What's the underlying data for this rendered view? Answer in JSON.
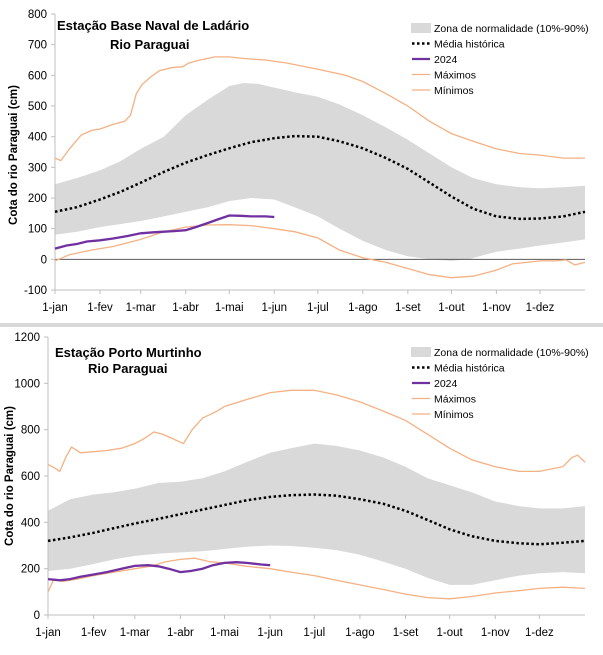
{
  "chart_data": [
    {
      "type": "line",
      "title": "Estação Base Naval de Ladário",
      "subtitle": "Rio Paraguai",
      "ylabel": "Cota do rio Paraguai (cm)",
      "xlabel": "",
      "ylim": [
        -100,
        800
      ],
      "yticks": [
        -100,
        0,
        100,
        200,
        300,
        400,
        500,
        600,
        700,
        800
      ],
      "xlim_day": [
        0,
        365
      ],
      "xticks": [
        {
          "label": "1-jan",
          "day": 0
        },
        {
          "label": "1-fev",
          "day": 31
        },
        {
          "label": "1-mar",
          "day": 59
        },
        {
          "label": "1-abr",
          "day": 90
        },
        {
          "label": "1-mai",
          "day": 120
        },
        {
          "label": "1-jun",
          "day": 151
        },
        {
          "label": "1-jul",
          "day": 181
        },
        {
          "label": "1-ago",
          "day": 212
        },
        {
          "label": "1-set",
          "day": 243
        },
        {
          "label": "1-out",
          "day": 273
        },
        {
          "label": "1-nov",
          "day": 304
        },
        {
          "label": "1-dez",
          "day": 334
        }
      ],
      "legend": [
        "Zona de normalidade (10%-90%)",
        "Média histórica",
        "2024",
        "Máximos",
        "Mínimos"
      ],
      "colors": {
        "band": "#d9d9d9",
        "mean": "#000000",
        "current": "#7030a0",
        "max": "#f4b183",
        "min": "#f4b183"
      },
      "band_upper": [
        [
          0,
          245
        ],
        [
          15,
          265
        ],
        [
          31,
          290
        ],
        [
          45,
          320
        ],
        [
          59,
          360
        ],
        [
          75,
          400
        ],
        [
          90,
          470
        ],
        [
          105,
          520
        ],
        [
          120,
          565
        ],
        [
          130,
          575
        ],
        [
          140,
          572
        ],
        [
          151,
          560
        ],
        [
          165,
          545
        ],
        [
          181,
          530
        ],
        [
          196,
          505
        ],
        [
          212,
          470
        ],
        [
          228,
          430
        ],
        [
          243,
          390
        ],
        [
          258,
          345
        ],
        [
          273,
          300
        ],
        [
          288,
          265
        ],
        [
          304,
          245
        ],
        [
          320,
          235
        ],
        [
          334,
          232
        ],
        [
          350,
          235
        ],
        [
          365,
          240
        ]
      ],
      "band_lower": [
        [
          0,
          80
        ],
        [
          15,
          90
        ],
        [
          31,
          105
        ],
        [
          45,
          115
        ],
        [
          59,
          125
        ],
        [
          75,
          140
        ],
        [
          90,
          155
        ],
        [
          105,
          170
        ],
        [
          120,
          190
        ],
        [
          135,
          200
        ],
        [
          151,
          195
        ],
        [
          165,
          170
        ],
        [
          181,
          140
        ],
        [
          196,
          100
        ],
        [
          212,
          60
        ],
        [
          228,
          30
        ],
        [
          243,
          10
        ],
        [
          258,
          0
        ],
        [
          273,
          -5
        ],
        [
          285,
          0
        ],
        [
          296,
          15
        ],
        [
          304,
          25
        ],
        [
          320,
          35
        ],
        [
          334,
          45
        ],
        [
          350,
          55
        ],
        [
          365,
          65
        ]
      ],
      "mean": [
        [
          0,
          155
        ],
        [
          15,
          170
        ],
        [
          31,
          195
        ],
        [
          45,
          220
        ],
        [
          59,
          250
        ],
        [
          75,
          285
        ],
        [
          90,
          315
        ],
        [
          105,
          340
        ],
        [
          120,
          362
        ],
        [
          135,
          382
        ],
        [
          151,
          395
        ],
        [
          165,
          402
        ],
        [
          181,
          400
        ],
        [
          196,
          385
        ],
        [
          212,
          362
        ],
        [
          228,
          330
        ],
        [
          243,
          295
        ],
        [
          258,
          250
        ],
        [
          273,
          205
        ],
        [
          288,
          165
        ],
        [
          304,
          140
        ],
        [
          320,
          132
        ],
        [
          334,
          133
        ],
        [
          350,
          140
        ],
        [
          365,
          155
        ]
      ],
      "current": [
        [
          0,
          35
        ],
        [
          8,
          45
        ],
        [
          15,
          50
        ],
        [
          22,
          58
        ],
        [
          31,
          62
        ],
        [
          40,
          68
        ],
        [
          50,
          76
        ],
        [
          59,
          85
        ],
        [
          68,
          88
        ],
        [
          75,
          90
        ],
        [
          82,
          92
        ],
        [
          90,
          95
        ],
        [
          97,
          105
        ],
        [
          105,
          118
        ],
        [
          112,
          130
        ],
        [
          120,
          143
        ],
        [
          128,
          142
        ],
        [
          135,
          140
        ],
        [
          145,
          140
        ],
        [
          151,
          138
        ]
      ],
      "max": [
        [
          0,
          330
        ],
        [
          4,
          322
        ],
        [
          10,
          360
        ],
        [
          18,
          405
        ],
        [
          25,
          420
        ],
        [
          31,
          425
        ],
        [
          40,
          440
        ],
        [
          48,
          450
        ],
        [
          52,
          470
        ],
        [
          56,
          540
        ],
        [
          60,
          570
        ],
        [
          66,
          595
        ],
        [
          72,
          615
        ],
        [
          80,
          625
        ],
        [
          88,
          628
        ],
        [
          92,
          640
        ],
        [
          100,
          650
        ],
        [
          110,
          660
        ],
        [
          120,
          660
        ],
        [
          130,
          655
        ],
        [
          145,
          650
        ],
        [
          160,
          640
        ],
        [
          181,
          620
        ],
        [
          200,
          600
        ],
        [
          212,
          580
        ],
        [
          228,
          540
        ],
        [
          243,
          500
        ],
        [
          258,
          450
        ],
        [
          273,
          410
        ],
        [
          288,
          385
        ],
        [
          304,
          360
        ],
        [
          320,
          345
        ],
        [
          334,
          340
        ],
        [
          350,
          330
        ],
        [
          365,
          330
        ]
      ],
      "min": [
        [
          0,
          -5
        ],
        [
          10,
          15
        ],
        [
          25,
          30
        ],
        [
          40,
          42
        ],
        [
          59,
          65
        ],
        [
          75,
          90
        ],
        [
          90,
          105
        ],
        [
          105,
          112
        ],
        [
          120,
          113
        ],
        [
          135,
          110
        ],
        [
          151,
          100
        ],
        [
          165,
          90
        ],
        [
          181,
          70
        ],
        [
          196,
          30
        ],
        [
          212,
          5
        ],
        [
          228,
          -10
        ],
        [
          243,
          -30
        ],
        [
          258,
          -50
        ],
        [
          273,
          -60
        ],
        [
          288,
          -55
        ],
        [
          304,
          -35
        ],
        [
          315,
          -15
        ],
        [
          325,
          -10
        ],
        [
          334,
          -5
        ],
        [
          345,
          -5
        ],
        [
          352,
          -2
        ],
        [
          358,
          -18
        ],
        [
          365,
          -10
        ]
      ]
    },
    {
      "type": "line",
      "title": "Estação Porto Murtinho",
      "subtitle": "Rio Paraguai",
      "ylabel": "Cota do rio Paraguai (cm)",
      "xlabel": "",
      "ylim": [
        0,
        1200
      ],
      "yticks": [
        0,
        200,
        400,
        600,
        800,
        1000,
        1200
      ],
      "xlim_day": [
        0,
        365
      ],
      "xticks": [
        {
          "label": "1-jan",
          "day": 0
        },
        {
          "label": "1-fev",
          "day": 31
        },
        {
          "label": "1-mar",
          "day": 59
        },
        {
          "label": "1-abr",
          "day": 90
        },
        {
          "label": "1-mai",
          "day": 120
        },
        {
          "label": "1-jun",
          "day": 151
        },
        {
          "label": "1-jul",
          "day": 181
        },
        {
          "label": "1-ago",
          "day": 212
        },
        {
          "label": "1-set",
          "day": 243
        },
        {
          "label": "1-out",
          "day": 273
        },
        {
          "label": "1-nov",
          "day": 304
        },
        {
          "label": "1-dez",
          "day": 334
        }
      ],
      "legend": [
        "Zona de normalidade (10%-90%)",
        "Média histórica",
        "2024",
        "Máximos",
        "Mínimos"
      ],
      "colors": {
        "band": "#d9d9d9",
        "mean": "#000000",
        "current": "#7030a0",
        "max": "#f4b183",
        "min": "#f4b183"
      },
      "band_upper": [
        [
          0,
          450
        ],
        [
          15,
          500
        ],
        [
          31,
          520
        ],
        [
          45,
          530
        ],
        [
          59,
          545
        ],
        [
          75,
          570
        ],
        [
          90,
          575
        ],
        [
          105,
          590
        ],
        [
          120,
          620
        ],
        [
          135,
          660
        ],
        [
          151,
          700
        ],
        [
          165,
          720
        ],
        [
          181,
          740
        ],
        [
          196,
          730
        ],
        [
          212,
          710
        ],
        [
          228,
          680
        ],
        [
          243,
          640
        ],
        [
          258,
          590
        ],
        [
          273,
          560
        ],
        [
          288,
          530
        ],
        [
          304,
          490
        ],
        [
          320,
          470
        ],
        [
          334,
          460
        ],
        [
          350,
          460
        ],
        [
          365,
          470
        ]
      ],
      "band_lower": [
        [
          0,
          190
        ],
        [
          15,
          200
        ],
        [
          31,
          220
        ],
        [
          45,
          240
        ],
        [
          59,
          255
        ],
        [
          75,
          265
        ],
        [
          90,
          270
        ],
        [
          105,
          275
        ],
        [
          120,
          285
        ],
        [
          135,
          295
        ],
        [
          151,
          300
        ],
        [
          165,
          298
        ],
        [
          181,
          290
        ],
        [
          196,
          280
        ],
        [
          212,
          260
        ],
        [
          228,
          230
        ],
        [
          243,
          200
        ],
        [
          258,
          160
        ],
        [
          273,
          130
        ],
        [
          288,
          130
        ],
        [
          304,
          150
        ],
        [
          320,
          170
        ],
        [
          334,
          180
        ],
        [
          350,
          185
        ],
        [
          365,
          180
        ]
      ],
      "mean": [
        [
          0,
          320
        ],
        [
          15,
          335
        ],
        [
          31,
          355
        ],
        [
          45,
          375
        ],
        [
          59,
          395
        ],
        [
          75,
          415
        ],
        [
          90,
          435
        ],
        [
          105,
          455
        ],
        [
          120,
          475
        ],
        [
          135,
          495
        ],
        [
          151,
          510
        ],
        [
          165,
          517
        ],
        [
          181,
          520
        ],
        [
          196,
          515
        ],
        [
          212,
          500
        ],
        [
          228,
          480
        ],
        [
          243,
          450
        ],
        [
          258,
          410
        ],
        [
          273,
          370
        ],
        [
          288,
          340
        ],
        [
          304,
          320
        ],
        [
          320,
          310
        ],
        [
          334,
          305
        ],
        [
          350,
          312
        ],
        [
          365,
          320
        ]
      ],
      "current": [
        [
          0,
          155
        ],
        [
          8,
          150
        ],
        [
          15,
          155
        ],
        [
          22,
          165
        ],
        [
          31,
          175
        ],
        [
          40,
          185
        ],
        [
          50,
          200
        ],
        [
          59,
          212
        ],
        [
          68,
          215
        ],
        [
          75,
          210
        ],
        [
          82,
          200
        ],
        [
          90,
          185
        ],
        [
          97,
          190
        ],
        [
          105,
          200
        ],
        [
          112,
          215
        ],
        [
          120,
          225
        ],
        [
          128,
          228
        ],
        [
          135,
          225
        ],
        [
          145,
          218
        ],
        [
          151,
          215
        ]
      ],
      "max": [
        [
          0,
          650
        ],
        [
          3,
          640
        ],
        [
          8,
          620
        ],
        [
          12,
          680
        ],
        [
          16,
          725
        ],
        [
          22,
          700
        ],
        [
          31,
          705
        ],
        [
          40,
          710
        ],
        [
          50,
          720
        ],
        [
          59,
          740
        ],
        [
          65,
          760
        ],
        [
          72,
          790
        ],
        [
          78,
          780
        ],
        [
          85,
          760
        ],
        [
          92,
          740
        ],
        [
          98,
          800
        ],
        [
          105,
          850
        ],
        [
          115,
          880
        ],
        [
          120,
          900
        ],
        [
          135,
          930
        ],
        [
          151,
          960
        ],
        [
          165,
          970
        ],
        [
          181,
          970
        ],
        [
          196,
          950
        ],
        [
          212,
          920
        ],
        [
          228,
          880
        ],
        [
          243,
          840
        ],
        [
          258,
          780
        ],
        [
          273,
          720
        ],
        [
          288,
          670
        ],
        [
          304,
          640
        ],
        [
          320,
          620
        ],
        [
          334,
          620
        ],
        [
          350,
          640
        ],
        [
          356,
          680
        ],
        [
          360,
          690
        ],
        [
          365,
          660
        ]
      ],
      "min": [
        [
          0,
          100
        ],
        [
          4,
          155
        ],
        [
          10,
          145
        ],
        [
          20,
          155
        ],
        [
          31,
          170
        ],
        [
          45,
          185
        ],
        [
          59,
          200
        ],
        [
          70,
          210
        ],
        [
          80,
          230
        ],
        [
          90,
          240
        ],
        [
          100,
          245
        ],
        [
          110,
          230
        ],
        [
          120,
          225
        ],
        [
          135,
          210
        ],
        [
          151,
          200
        ],
        [
          165,
          185
        ],
        [
          181,
          170
        ],
        [
          196,
          150
        ],
        [
          212,
          130
        ],
        [
          228,
          110
        ],
        [
          243,
          90
        ],
        [
          258,
          75
        ],
        [
          273,
          70
        ],
        [
          288,
          80
        ],
        [
          304,
          95
        ],
        [
          320,
          105
        ],
        [
          334,
          115
        ],
        [
          350,
          120
        ],
        [
          365,
          115
        ]
      ]
    }
  ]
}
